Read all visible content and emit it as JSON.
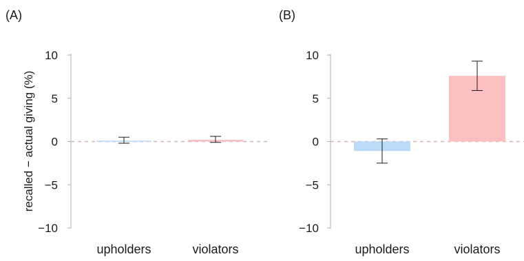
{
  "colors": {
    "upholders": "#b9dbf7",
    "violators": "#fcc0c3",
    "axis": "#b0b0b0",
    "zero_line": "#d9b3b3",
    "error_bar": "#1a1a1a"
  },
  "chart_data": [
    {
      "panel": "(A)",
      "type": "bar",
      "categories": [
        "upholders",
        "violators"
      ],
      "values": [
        0.1,
        0.2
      ],
      "error_low": [
        -0.2,
        -0.1
      ],
      "error_high": [
        0.5,
        0.6
      ],
      "ylabel": "recalled − actual giving (%)",
      "ylim": [
        -10,
        10
      ],
      "yticks": [
        10,
        5,
        0,
        -5,
        -10
      ],
      "ytick_labels": [
        "10",
        "5",
        "0",
        "−5",
        "−10"
      ],
      "grid": false,
      "reference_line": 0
    },
    {
      "panel": "(B)",
      "type": "bar",
      "categories": [
        "upholders",
        "violators"
      ],
      "values": [
        -1.1,
        7.6
      ],
      "error_low": [
        -2.5,
        5.9
      ],
      "error_high": [
        0.3,
        9.3
      ],
      "ylabel": "",
      "ylim": [
        -10,
        10
      ],
      "yticks": [
        10,
        5,
        0,
        -5,
        -10
      ],
      "ytick_labels": [
        "10",
        "5",
        "0",
        "−5",
        "−10"
      ],
      "grid": false,
      "reference_line": 0
    }
  ]
}
